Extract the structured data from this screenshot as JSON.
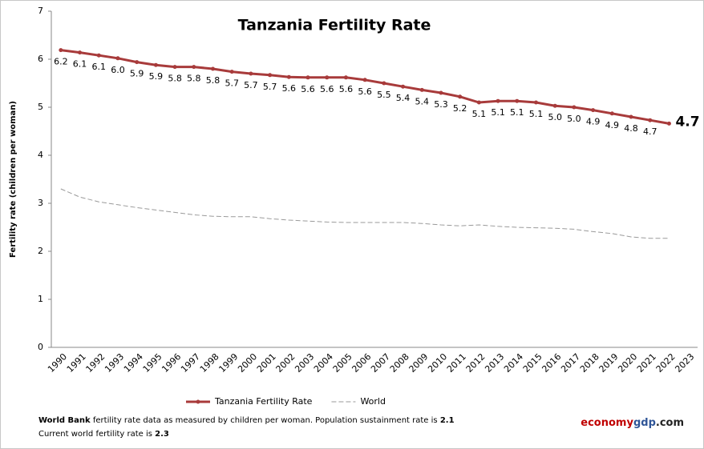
{
  "chart_data": {
    "type": "line",
    "title": "Tanzania Fertility Rate",
    "y_label": "Fertility rate (children per woman)",
    "categories": [
      "1990",
      "1991",
      "1992",
      "1993",
      "1994",
      "1995",
      "1996",
      "1997",
      "1998",
      "1999",
      "2000",
      "2001",
      "2002",
      "2003",
      "2004",
      "2005",
      "2006",
      "2007",
      "2008",
      "2009",
      "2010",
      "2011",
      "2012",
      "2013",
      "2014",
      "2015",
      "2016",
      "2017",
      "2018",
      "2019",
      "2020",
      "2021",
      "2022",
      "2023"
    ],
    "series": [
      {
        "name": "Tanzania Fertility Rate",
        "color": "#a83b3b",
        "line_style": "solid",
        "markers": true,
        "values": [
          6.19,
          6.14,
          6.08,
          6.02,
          5.94,
          5.88,
          5.84,
          5.84,
          5.8,
          5.74,
          5.7,
          5.67,
          5.63,
          5.62,
          5.62,
          5.62,
          5.57,
          5.5,
          5.43,
          5.36,
          5.3,
          5.22,
          5.1,
          5.13,
          5.13,
          5.1,
          5.03,
          5.0,
          4.94,
          4.87,
          4.8,
          4.73,
          4.66,
          null
        ],
        "value_labels": [
          "6.2",
          "6.1",
          "6.1",
          "6.0",
          "5.9",
          "5.9",
          "5.8",
          "5.8",
          "5.8",
          "5.7",
          "5.7",
          "5.7",
          "5.6",
          "5.6",
          "5.6",
          "5.6",
          "5.6",
          "5.5",
          "5.4",
          "5.4",
          "5.3",
          "5.2",
          "5.1",
          "5.1",
          "5.1",
          "5.1",
          "5.0",
          "5.0",
          "4.9",
          "4.9",
          "4.8",
          "4.7",
          "4.7",
          null
        ]
      },
      {
        "name": "World",
        "color": "#9a9a9a",
        "line_style": "dashed",
        "markers": false,
        "values": [
          3.3,
          3.13,
          3.03,
          2.97,
          2.91,
          2.86,
          2.81,
          2.76,
          2.73,
          2.72,
          2.72,
          2.68,
          2.65,
          2.63,
          2.61,
          2.6,
          2.6,
          2.6,
          2.6,
          2.58,
          2.55,
          2.53,
          2.55,
          2.52,
          2.5,
          2.49,
          2.48,
          2.46,
          2.41,
          2.37,
          2.3,
          2.27,
          2.27,
          null
        ]
      }
    ],
    "ylim": [
      0,
      7
    ],
    "yticks": [
      0,
      1,
      2,
      3,
      4,
      5,
      6,
      7
    ],
    "grid": false,
    "legend": "bottom",
    "notes": [
      [
        "World Bank",
        " fertility rate data as measured by children per woman.  Population sustainment rate is ",
        "2.1"
      ],
      [
        "Current world fertility rate is ",
        "2.3"
      ]
    ],
    "brand": [
      "economy",
      "gdp",
      ".com"
    ]
  }
}
